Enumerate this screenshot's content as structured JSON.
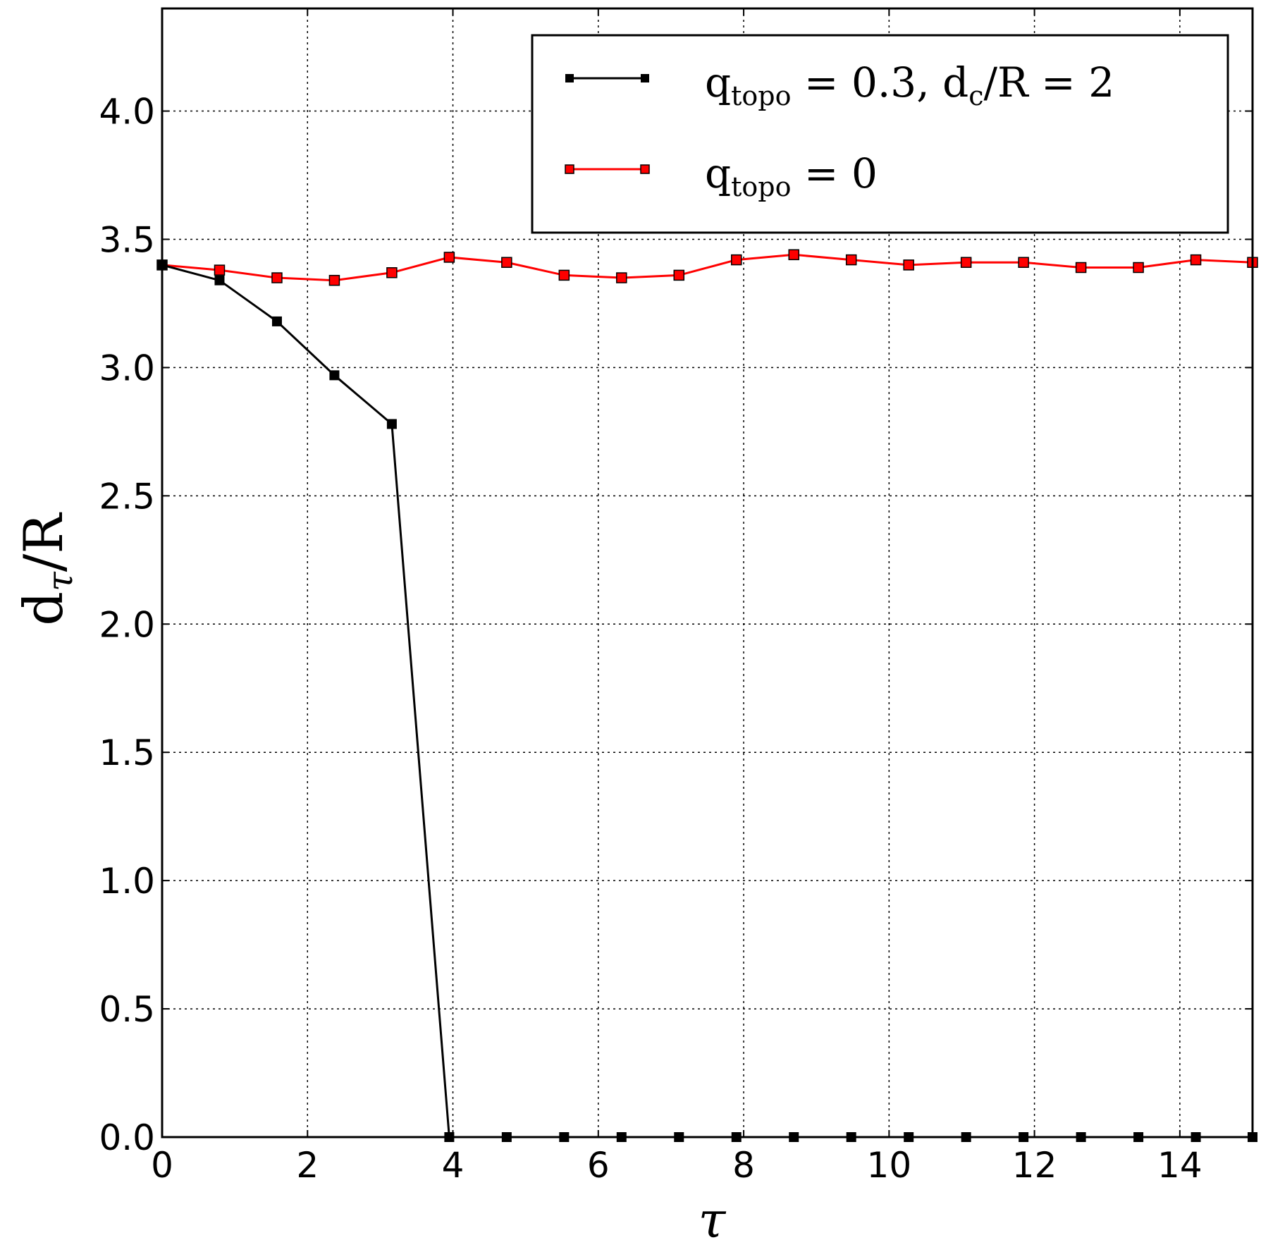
{
  "chart_data": {
    "type": "line",
    "xlabel": "τ",
    "ylabel_main": "d",
    "ylabel_sub": "τ",
    "ylabel_rest": "/R",
    "xlim": [
      0,
      15
    ],
    "ylim": [
      0,
      4.4
    ],
    "x_ticks": [
      "0",
      "2",
      "4",
      "6",
      "8",
      "10",
      "12",
      "14"
    ],
    "y_ticks": [
      "0.0",
      "0.5",
      "1.0",
      "1.5",
      "2.0",
      "2.5",
      "3.0",
      "3.5",
      "4.0"
    ],
    "grid": true,
    "legend_position": "top-right",
    "series": [
      {
        "name": "q_topo = 0.3, d_c/R = 2",
        "legend": {
          "q": "q",
          "q_sub": "topo",
          "rest1": " = 0.3, d",
          "d_sub": "c",
          "rest2": "/R = 2"
        },
        "color": "#000000",
        "marker": "square",
        "x": [
          0,
          0.79,
          1.58,
          2.37,
          3.16,
          3.95,
          4.74,
          5.53,
          6.32,
          7.11,
          7.9,
          8.69,
          9.48,
          10.27,
          11.06,
          11.85,
          12.64,
          13.43,
          14.22,
          15.01
        ],
        "y": [
          3.4,
          3.34,
          3.18,
          2.97,
          2.78,
          0,
          0,
          0,
          0,
          0,
          0,
          0,
          0,
          0,
          0,
          0,
          0,
          0,
          0,
          0
        ]
      },
      {
        "name": "q_topo = 0",
        "legend": {
          "q": "q",
          "q_sub": "topo",
          "rest1": " = 0"
        },
        "color": "#ff0000",
        "marker": "square",
        "x": [
          0,
          0.79,
          1.58,
          2.37,
          3.16,
          3.95,
          4.74,
          5.53,
          6.32,
          7.11,
          7.9,
          8.69,
          9.48,
          10.27,
          11.06,
          11.85,
          12.64,
          13.43,
          14.22,
          15.01
        ],
        "y": [
          3.4,
          3.38,
          3.35,
          3.34,
          3.37,
          3.43,
          3.41,
          3.36,
          3.35,
          3.36,
          3.42,
          3.44,
          3.42,
          3.4,
          3.41,
          3.41,
          3.39,
          3.39,
          3.42,
          3.41
        ]
      }
    ]
  }
}
